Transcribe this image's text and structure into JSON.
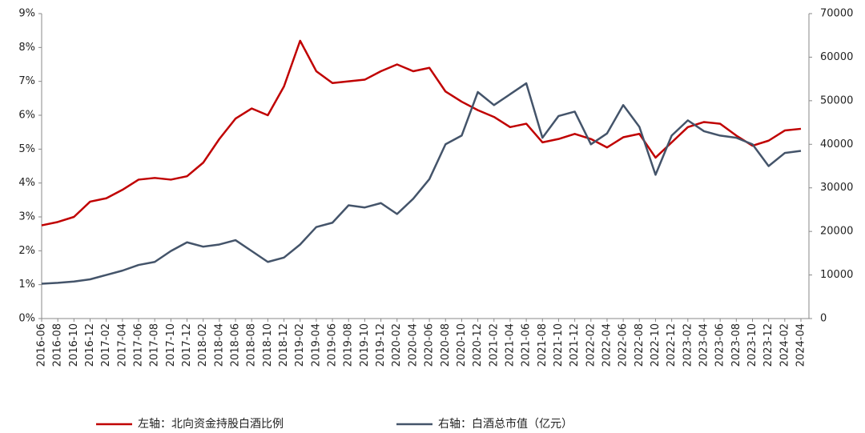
{
  "chart_data": {
    "type": "line",
    "categories": [
      "2016-06",
      "2016-08",
      "2016-10",
      "2016-12",
      "2017-02",
      "2017-04",
      "2017-06",
      "2017-08",
      "2017-10",
      "2017-12",
      "2018-02",
      "2018-04",
      "2018-06",
      "2018-08",
      "2018-10",
      "2018-12",
      "2019-02",
      "2019-04",
      "2019-06",
      "2019-08",
      "2019-10",
      "2019-12",
      "2020-02",
      "2020-04",
      "2020-06",
      "2020-08",
      "2020-10",
      "2020-12",
      "2021-02",
      "2021-04",
      "2021-06",
      "2021-08",
      "2021-10",
      "2021-12",
      "2022-02",
      "2022-04",
      "2022-06",
      "2022-08",
      "2022-10",
      "2022-12",
      "2023-02",
      "2023-04",
      "2023-06",
      "2023-08",
      "2023-10",
      "2023-12",
      "2024-02",
      "2024-04"
    ],
    "series": [
      {
        "name": "左轴：北向资金持股白酒比例",
        "color": "#c00000",
        "values": [
          2.75,
          2.85,
          3.0,
          3.45,
          3.55,
          3.8,
          4.1,
          4.15,
          4.1,
          4.2,
          4.6,
          5.3,
          5.9,
          6.2,
          6.0,
          6.85,
          8.2,
          7.3,
          6.95,
          7.0,
          7.05,
          7.3,
          7.5,
          7.3,
          7.4,
          6.7,
          6.4,
          6.15,
          5.95,
          5.65,
          5.75,
          5.2,
          5.3,
          5.45,
          5.3,
          5.05,
          5.35,
          5.45,
          4.75,
          5.2,
          5.65,
          5.8,
          5.75,
          5.4,
          5.1,
          5.25,
          5.55,
          5.6
        ]
      },
      {
        "name": "右轴：白酒总市值（亿元）",
        "color": "#44546a",
        "axis": "y2",
        "values": [
          8000,
          8200,
          8500,
          9000,
          10000,
          11000,
          12300,
          13000,
          15500,
          17500,
          16500,
          17000,
          18000,
          15500,
          13000,
          14000,
          17000,
          21000,
          22000,
          26000,
          25500,
          26500,
          24000,
          27500,
          32000,
          40000,
          42000,
          52000,
          49000,
          51500,
          54000,
          41500,
          46500,
          47500,
          40000,
          42500,
          49000,
          44000,
          33000,
          42000,
          45500,
          43000,
          42000,
          41500,
          40000,
          35000,
          38000,
          38500
        ]
      }
    ],
    "ylim": [
      0,
      9
    ],
    "yticks": [
      {
        "value": 0,
        "label": "0%"
      },
      {
        "value": 1,
        "label": "1%"
      },
      {
        "value": 2,
        "label": "2%"
      },
      {
        "value": 3,
        "label": "3%"
      },
      {
        "value": 4,
        "label": "4%"
      },
      {
        "value": 5,
        "label": "5%"
      },
      {
        "value": 6,
        "label": "6%"
      },
      {
        "value": 7,
        "label": "7%"
      },
      {
        "value": 8,
        "label": "8%"
      },
      {
        "value": 9,
        "label": "9%"
      }
    ],
    "y2lim": [
      0,
      70000
    ],
    "y2ticks": [
      0,
      10000,
      20000,
      30000,
      40000,
      50000,
      60000,
      70000
    ]
  }
}
